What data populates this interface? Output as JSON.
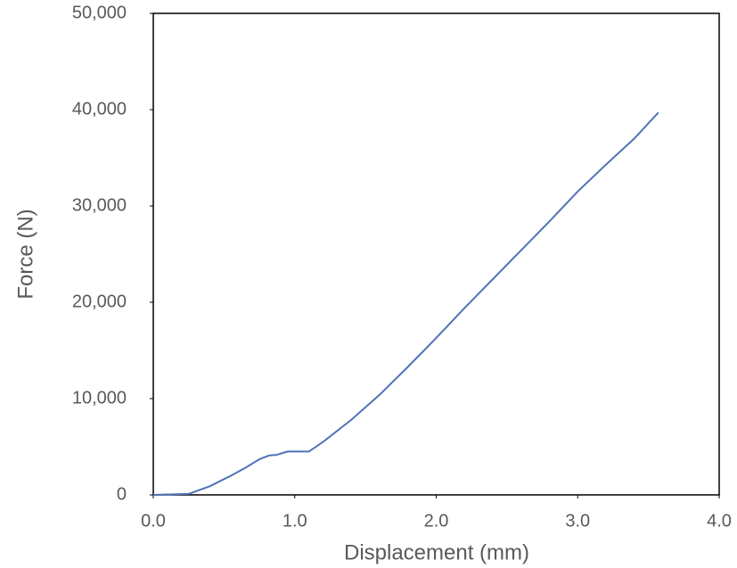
{
  "chart_data": {
    "type": "line",
    "x_label": "Displacement (mm)",
    "y_label": "Force (N)",
    "x": [
      0,
      0.25,
      0.4,
      0.55,
      0.65,
      0.75,
      0.82,
      0.87,
      0.95,
      1.1,
      1.2,
      1.4,
      1.6,
      1.8,
      2.0,
      2.2,
      2.4,
      2.6,
      2.8,
      3.0,
      3.2,
      3.4,
      3.57
    ],
    "series": [
      {
        "color": "#4f72b8",
        "values": [
          0,
          100,
          900,
          2000,
          2800,
          3700,
          4100,
          4150,
          4500,
          4500,
          5500,
          7800,
          10400,
          13300,
          16300,
          19400,
          22400,
          25400,
          28400,
          31500,
          34300,
          37000,
          39700
        ]
      }
    ],
    "xlim": [
      0,
      4
    ],
    "xticks": [
      {
        "value": 0,
        "label": "0.0"
      },
      {
        "value": 1,
        "label": "1.0"
      },
      {
        "value": 2,
        "label": "2.0"
      },
      {
        "value": 3,
        "label": "3.0"
      },
      {
        "value": 4,
        "label": "4.0"
      }
    ],
    "ylim": [
      0,
      50000
    ],
    "yticks": [
      0,
      {
        "value": 10000,
        "label": "10,000"
      },
      {
        "value": 20000,
        "label": "20,000"
      },
      {
        "value": 30000,
        "label": "30,000"
      },
      {
        "value": 40000,
        "label": "40,000"
      },
      {
        "value": 50000,
        "label": "50,000"
      }
    ],
    "grid": false
  }
}
